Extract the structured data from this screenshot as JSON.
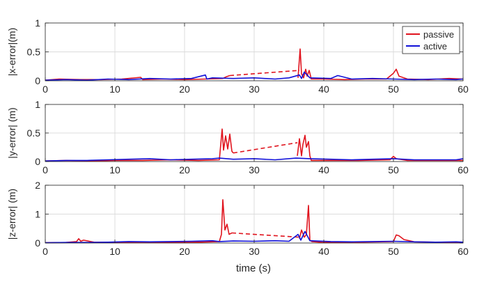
{
  "figure": {
    "xlabel": "time (s)",
    "legend": {
      "location": "top-right",
      "entries": [
        "passive",
        "active"
      ]
    },
    "colors": {
      "passive": "#e0141e",
      "active": "#1010d8",
      "grid": "#dcdcdc",
      "axis": "#262626"
    }
  },
  "chart_data": [
    {
      "type": "line",
      "ylabel": "|x-error|(m)",
      "xlim": [
        0,
        60
      ],
      "ylim": [
        0,
        1
      ],
      "xticks": [
        0,
        10,
        20,
        30,
        40,
        50,
        60
      ],
      "yticks": [
        0,
        0.5,
        1
      ],
      "ytick_labels": [
        "0",
        "0.5",
        "1"
      ],
      "grid": true,
      "legend": true,
      "series": [
        {
          "name": "passive",
          "style": "solid",
          "x": [
            0,
            2,
            5,
            8,
            11,
            13.7,
            14,
            17,
            20,
            23,
            25.5,
            26,
            26.5
          ],
          "y": [
            0.01,
            0.03,
            0.02,
            0.02,
            0.03,
            0.06,
            0.02,
            0.03,
            0.02,
            0.03,
            0.04,
            0.07,
            0.09
          ]
        },
        {
          "name": "passive",
          "style": "dashed",
          "x": [
            26.5,
            36.5
          ],
          "y": [
            0.09,
            0.18
          ]
        },
        {
          "name": "passive",
          "style": "solid",
          "x": [
            36.3,
            36.6,
            36.8,
            37.1,
            37.4,
            37.6,
            37.9,
            38.2,
            40,
            43,
            46,
            49,
            50,
            50.4,
            50.8,
            52,
            55,
            58,
            60
          ],
          "y": [
            0.05,
            0.55,
            0.12,
            0.05,
            0.2,
            0.08,
            0.18,
            0.03,
            0.03,
            0.02,
            0.03,
            0.03,
            0.13,
            0.2,
            0.08,
            0.03,
            0.02,
            0.04,
            0.03
          ]
        },
        {
          "name": "active",
          "style": "solid",
          "x": [
            0,
            3,
            6,
            9,
            12,
            15,
            18,
            21,
            23,
            23.2,
            24,
            27,
            30,
            33,
            35,
            36.5,
            36.8,
            37.2,
            38,
            41,
            42,
            44,
            47,
            50,
            53,
            56,
            59,
            60
          ],
          "y": [
            0.01,
            0.02,
            0.01,
            0.03,
            0.02,
            0.04,
            0.03,
            0.04,
            0.1,
            0.03,
            0.05,
            0.04,
            0.05,
            0.03,
            0.05,
            0.1,
            0.04,
            0.15,
            0.05,
            0.04,
            0.09,
            0.03,
            0.04,
            0.03,
            0.02,
            0.03,
            0.02,
            0.03
          ]
        }
      ]
    },
    {
      "type": "line",
      "ylabel": "|y-error| (m)",
      "xlim": [
        0,
        60
      ],
      "ylim": [
        0,
        1
      ],
      "xticks": [
        0,
        10,
        20,
        30,
        40,
        50,
        60
      ],
      "yticks": [
        0,
        0.5,
        1
      ],
      "ytick_labels": [
        "0",
        "0.5",
        "1"
      ],
      "grid": true,
      "series": [
        {
          "name": "passive",
          "style": "solid",
          "x": [
            0,
            3,
            6,
            10,
            14,
            18,
            22,
            25,
            25.4,
            25.6,
            25.9,
            26.2,
            26.5,
            26.8,
            27
          ],
          "y": [
            0.01,
            0.02,
            0.01,
            0.02,
            0.02,
            0.03,
            0.02,
            0.03,
            0.57,
            0.2,
            0.45,
            0.22,
            0.48,
            0.18,
            0.15
          ]
        },
        {
          "name": "passive",
          "style": "dashed",
          "x": [
            27,
            36.2
          ],
          "y": [
            0.15,
            0.33
          ]
        },
        {
          "name": "passive",
          "style": "solid",
          "x": [
            36.2,
            36.5,
            36.8,
            37,
            37.3,
            37.5,
            37.8,
            38,
            38.2,
            40,
            45,
            49.5,
            50,
            50.4,
            52,
            56,
            60
          ],
          "y": [
            0.1,
            0.4,
            0.1,
            0.3,
            0.46,
            0.25,
            0.35,
            0.1,
            0.02,
            0.02,
            0.02,
            0.03,
            0.09,
            0.05,
            0.02,
            0.02,
            0.02
          ]
        },
        {
          "name": "active",
          "style": "solid",
          "x": [
            0,
            3,
            6,
            9,
            12,
            15,
            18,
            21,
            24,
            25,
            27,
            30,
            33,
            36,
            38,
            41,
            44,
            47,
            50,
            53,
            56,
            59,
            60
          ],
          "y": [
            0.01,
            0.02,
            0.02,
            0.03,
            0.04,
            0.05,
            0.03,
            0.04,
            0.05,
            0.06,
            0.04,
            0.05,
            0.03,
            0.06,
            0.05,
            0.04,
            0.03,
            0.04,
            0.05,
            0.03,
            0.03,
            0.03,
            0.05
          ]
        }
      ]
    },
    {
      "type": "line",
      "ylabel": "|z-error| (m)",
      "xlabel": "time (s)",
      "xlim": [
        0,
        60
      ],
      "ylim": [
        0,
        2
      ],
      "xticks": [
        0,
        10,
        20,
        30,
        40,
        50,
        60
      ],
      "yticks": [
        0,
        1,
        2
      ],
      "ytick_labels": [
        "0",
        "1",
        "2"
      ],
      "grid": true,
      "series": [
        {
          "name": "passive",
          "style": "solid",
          "x": [
            0,
            3,
            4.5,
            4.8,
            5.1,
            5.5,
            7,
            10,
            14,
            18,
            22,
            25,
            25.3,
            25.5,
            25.8,
            26.1,
            26.4,
            26.8
          ],
          "y": [
            0.01,
            0.02,
            0.05,
            0.15,
            0.06,
            0.1,
            0.03,
            0.02,
            0.03,
            0.02,
            0.03,
            0.05,
            0.3,
            1.5,
            0.45,
            0.65,
            0.3,
            0.35
          ]
        },
        {
          "name": "passive",
          "style": "dashed",
          "x": [
            26.8,
            36.5
          ],
          "y": [
            0.35,
            0.2
          ]
        },
        {
          "name": "passive",
          "style": "solid",
          "x": [
            36.5,
            36.8,
            37.2,
            37.5,
            37.8,
            38,
            38.3,
            40,
            45,
            50,
            50.4,
            50.8,
            51.5,
            53,
            56,
            60
          ],
          "y": [
            0.15,
            0.45,
            0.2,
            0.3,
            1.3,
            0.1,
            0.05,
            0.02,
            0.03,
            0.05,
            0.28,
            0.25,
            0.12,
            0.04,
            0.03,
            0.02
          ]
        },
        {
          "name": "active",
          "style": "solid",
          "x": [
            0,
            3,
            6,
            9,
            12,
            15,
            18,
            21,
            24,
            25,
            27,
            30,
            33,
            35,
            36.3,
            36.7,
            37.3,
            38,
            41,
            44,
            47,
            50,
            53,
            56,
            59,
            60
          ],
          "y": [
            0.01,
            0.02,
            0.02,
            0.03,
            0.05,
            0.04,
            0.05,
            0.06,
            0.08,
            0.05,
            0.07,
            0.06,
            0.08,
            0.06,
            0.3,
            0.1,
            0.4,
            0.08,
            0.05,
            0.04,
            0.05,
            0.06,
            0.04,
            0.03,
            0.04,
            0.03
          ]
        }
      ]
    }
  ]
}
